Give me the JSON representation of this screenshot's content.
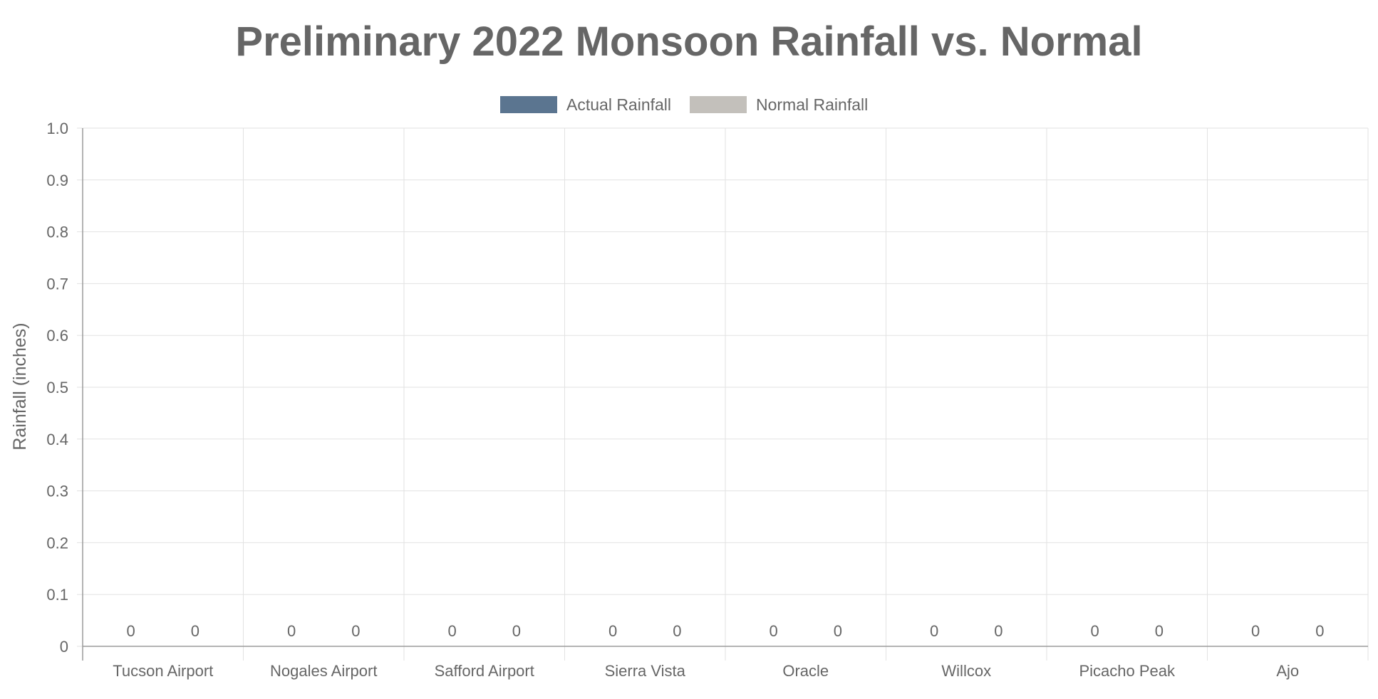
{
  "chart_data": {
    "type": "bar",
    "title": "Preliminary 2022 Monsoon Rainfall vs. Normal",
    "xlabel": "",
    "ylabel": "Rainfall (inches)",
    "ylim": [
      0,
      1.0
    ],
    "y_ticks": [
      "0",
      "0.1",
      "0.2",
      "0.3",
      "0.4",
      "0.5",
      "0.6",
      "0.7",
      "0.8",
      "0.9",
      "1.0"
    ],
    "grid": true,
    "legend_position": "top",
    "categories": [
      "Tucson Airport",
      "Nogales Airport",
      "Safford Airport",
      "Sierra Vista",
      "Oracle",
      "Willcox",
      "Picacho Peak",
      "Ajo"
    ],
    "series": [
      {
        "name": "Actual Rainfall",
        "color": "#5b7590",
        "values": [
          0,
          0,
          0,
          0,
          0,
          0,
          0,
          0
        ],
        "data_labels": [
          "0",
          "0",
          "0",
          "0",
          "0",
          "0",
          "0",
          "0"
        ]
      },
      {
        "name": "Normal Rainfall",
        "color": "#c3c0bb",
        "values": [
          0,
          0,
          0,
          0,
          0,
          0,
          0,
          0
        ],
        "data_labels": [
          "0",
          "0",
          "0",
          "0",
          "0",
          "0",
          "0",
          "0"
        ]
      }
    ]
  }
}
